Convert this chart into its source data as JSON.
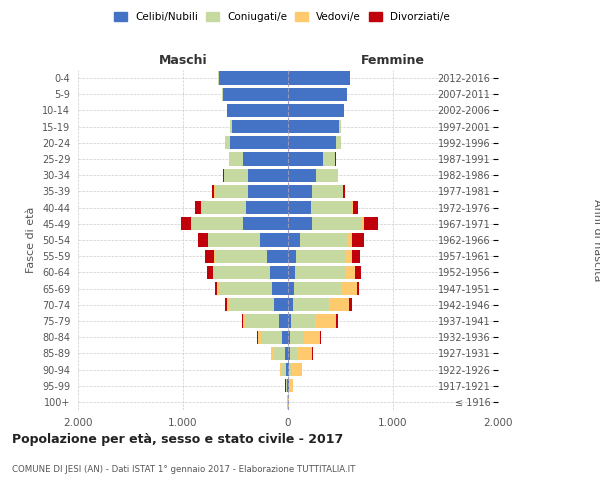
{
  "age_groups": [
    "100+",
    "95-99",
    "90-94",
    "85-89",
    "80-84",
    "75-79",
    "70-74",
    "65-69",
    "60-64",
    "55-59",
    "50-54",
    "45-49",
    "40-44",
    "35-39",
    "30-34",
    "25-29",
    "20-24",
    "15-19",
    "10-14",
    "5-9",
    "0-4"
  ],
  "birth_years": [
    "≤ 1916",
    "1917-1921",
    "1922-1926",
    "1927-1931",
    "1932-1936",
    "1937-1941",
    "1942-1946",
    "1947-1951",
    "1952-1956",
    "1957-1961",
    "1962-1966",
    "1967-1971",
    "1972-1976",
    "1977-1981",
    "1982-1986",
    "1987-1991",
    "1992-1996",
    "1997-2001",
    "2002-2006",
    "2007-2011",
    "2012-2016"
  ],
  "maschi": {
    "celibi": [
      3,
      8,
      15,
      30,
      55,
      90,
      130,
      155,
      175,
      200,
      270,
      430,
      400,
      380,
      380,
      430,
      550,
      530,
      580,
      620,
      660
    ],
    "coniugati": [
      2,
      12,
      45,
      100,
      200,
      310,
      420,
      500,
      530,
      500,
      490,
      490,
      430,
      320,
      230,
      130,
      50,
      20,
      5,
      5,
      3
    ],
    "vedovi": [
      0,
      3,
      15,
      30,
      35,
      30,
      30,
      20,
      12,
      8,
      5,
      3,
      2,
      1,
      1,
      0,
      0,
      0,
      0,
      0,
      0
    ],
    "divorziati": [
      0,
      1,
      3,
      5,
      8,
      12,
      18,
      20,
      55,
      80,
      90,
      100,
      50,
      25,
      10,
      3,
      1,
      0,
      0,
      0,
      0
    ]
  },
  "femmine": {
    "nubili": [
      2,
      5,
      10,
      15,
      20,
      30,
      45,
      55,
      70,
      80,
      110,
      230,
      220,
      230,
      270,
      330,
      460,
      490,
      530,
      560,
      590
    ],
    "coniugate": [
      2,
      8,
      30,
      70,
      130,
      230,
      350,
      450,
      480,
      470,
      460,
      470,
      390,
      290,
      200,
      120,
      45,
      15,
      3,
      3,
      2
    ],
    "vedove": [
      2,
      35,
      95,
      145,
      155,
      200,
      190,
      150,
      90,
      60,
      35,
      20,
      10,
      5,
      3,
      1,
      1,
      0,
      0,
      0,
      0
    ],
    "divorziate": [
      0,
      1,
      2,
      5,
      8,
      18,
      20,
      20,
      55,
      80,
      120,
      140,
      50,
      20,
      5,
      2,
      1,
      0,
      0,
      0,
      0
    ]
  },
  "colors": {
    "celibi_nubili": "#4472c4",
    "coniugati_e": "#c5d9a0",
    "vedovi_e": "#ffc96e",
    "divorziati_e": "#c0000a"
  },
  "title": "Popolazione per età, sesso e stato civile - 2017",
  "subtitle": "COMUNE DI JESI (AN) - Dati ISTAT 1° gennaio 2017 - Elaborazione TUTTITALIA.IT",
  "ylabel_left": "Fasce di età",
  "ylabel_right": "Anni di nascita",
  "xlabel_maschi": "Maschi",
  "xlabel_femmine": "Femmine",
  "xlim": 2000,
  "xtick_labels": [
    "2.000",
    "1.000",
    "0",
    "1.000",
    "2.000"
  ],
  "xtick_values": [
    -2000,
    -1000,
    0,
    1000,
    2000
  ],
  "background_color": "#ffffff",
  "grid_color": "#cccccc"
}
